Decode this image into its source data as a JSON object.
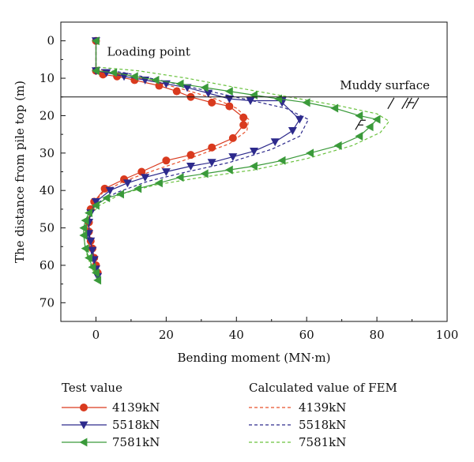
{
  "chart_data": {
    "type": "line",
    "xlabel": "Bending moment (MN·m)",
    "ylabel": "The distance from pile top (m)",
    "xlim": [
      -10,
      100
    ],
    "ylim": [
      75,
      -5
    ],
    "x_ticks": [
      0,
      20,
      40,
      60,
      80,
      100
    ],
    "y_ticks": [
      0,
      10,
      20,
      30,
      40,
      50,
      60,
      70
    ],
    "inverted_y": true,
    "grid": false,
    "annotations": {
      "loading_point": {
        "text": "Loading point"
      },
      "muddy_surface": {
        "text": "Muddy surface",
        "depth": 15
      }
    },
    "legend": {
      "test_title": "Test value",
      "fem_title": "Calculated value of FEM",
      "placement": "bottom"
    },
    "test_series": [
      {
        "name": "4139kN",
        "color": "#d93a1e",
        "marker": "circle",
        "points": [
          [
            0,
            0
          ],
          [
            0,
            8
          ],
          [
            2,
            9
          ],
          [
            6,
            9.5
          ],
          [
            11,
            10.5
          ],
          [
            18,
            12
          ],
          [
            23,
            13.5
          ],
          [
            27,
            15
          ],
          [
            33,
            16.5
          ],
          [
            38,
            17.5
          ],
          [
            42,
            20.5
          ],
          [
            42,
            22.5
          ],
          [
            39,
            26
          ],
          [
            33,
            28.5
          ],
          [
            27,
            30.5
          ],
          [
            20,
            32
          ],
          [
            13,
            35
          ],
          [
            8,
            37
          ],
          [
            2.5,
            39.5
          ],
          [
            -0.5,
            43
          ],
          [
            -1.5,
            45
          ],
          [
            -2,
            48.5
          ],
          [
            -2,
            51
          ],
          [
            -1.5,
            53.5
          ],
          [
            -1,
            55.5
          ],
          [
            -0.5,
            58
          ],
          [
            0,
            60
          ],
          [
            0.5,
            62
          ]
        ]
      },
      {
        "name": "5518kN",
        "color": "#2d2a8c",
        "marker": "triangle-down",
        "points": [
          [
            0,
            0
          ],
          [
            0,
            8
          ],
          [
            3,
            8.5
          ],
          [
            8,
            9.5
          ],
          [
            14,
            10.5
          ],
          [
            20,
            11.5
          ],
          [
            26,
            12.5
          ],
          [
            32,
            14
          ],
          [
            38,
            15.5
          ],
          [
            44,
            16
          ],
          [
            53,
            16
          ],
          [
            53,
            16.5
          ],
          [
            58,
            21
          ],
          [
            56,
            24
          ],
          [
            51,
            27
          ],
          [
            45,
            29.5
          ],
          [
            39,
            31
          ],
          [
            33,
            32.5
          ],
          [
            27,
            33.5
          ],
          [
            20,
            35
          ],
          [
            14,
            36.5
          ],
          [
            9,
            38
          ],
          [
            4,
            40
          ],
          [
            0,
            43
          ],
          [
            -1.5,
            46
          ],
          [
            -2,
            48.5
          ],
          [
            -2,
            51.5
          ],
          [
            -1.5,
            53.5
          ],
          [
            -1,
            56
          ],
          [
            -0.5,
            58.5
          ],
          [
            0,
            61
          ],
          [
            0.5,
            63
          ]
        ]
      },
      {
        "name": "7581kN",
        "color": "#3a9a3a",
        "marker": "triangle-left",
        "points": [
          [
            0,
            0
          ],
          [
            0,
            8
          ],
          [
            5,
            8.5
          ],
          [
            11,
            9.5
          ],
          [
            17,
            10.5
          ],
          [
            24,
            11.5
          ],
          [
            31,
            12.5
          ],
          [
            38,
            13.5
          ],
          [
            45,
            14.5
          ],
          [
            52,
            15.5
          ],
          [
            60,
            16.5
          ],
          [
            68,
            18
          ],
          [
            75,
            20
          ],
          [
            80,
            21
          ],
          [
            78,
            23
          ],
          [
            75,
            25.5
          ],
          [
            69,
            28
          ],
          [
            61,
            30
          ],
          [
            53,
            32
          ],
          [
            45,
            33.5
          ],
          [
            38,
            34.5
          ],
          [
            31,
            35.5
          ],
          [
            24,
            36.5
          ],
          [
            18,
            38
          ],
          [
            12,
            39.5
          ],
          [
            7,
            41
          ],
          [
            3,
            42
          ],
          [
            0,
            44
          ],
          [
            -2,
            46
          ],
          [
            -3,
            48
          ],
          [
            -3.5,
            50
          ],
          [
            -3.5,
            52
          ],
          [
            -3,
            55.5
          ],
          [
            -2,
            58
          ],
          [
            -1,
            60.5
          ],
          [
            0,
            62
          ],
          [
            0.5,
            64
          ]
        ]
      }
    ],
    "fem_series": [
      {
        "name": "4139kN",
        "color": "#e8502a",
        "points": [
          [
            0,
            0
          ],
          [
            0,
            7.5
          ],
          [
            6,
            8.5
          ],
          [
            15,
            10.5
          ],
          [
            25,
            13
          ],
          [
            34,
            15.5
          ],
          [
            40,
            18
          ],
          [
            43.5,
            21
          ],
          [
            43,
            24
          ],
          [
            38,
            27.5
          ],
          [
            28,
            31
          ],
          [
            17,
            34.5
          ],
          [
            8,
            37.5
          ],
          [
            2,
            40.5
          ],
          [
            -1,
            44
          ],
          [
            -2.5,
            49
          ],
          [
            -2,
            54
          ],
          [
            -1,
            58
          ],
          [
            0,
            61
          ],
          [
            0.5,
            63
          ]
        ]
      },
      {
        "name": "5518kN",
        "color": "#2d2a8c",
        "points": [
          [
            0,
            0
          ],
          [
            0,
            7.5
          ],
          [
            8,
            8.5
          ],
          [
            18,
            10.5
          ],
          [
            30,
            13
          ],
          [
            42,
            15.5
          ],
          [
            54,
            18
          ],
          [
            60.5,
            21
          ],
          [
            58,
            25.5
          ],
          [
            50,
            29
          ],
          [
            38,
            32.5
          ],
          [
            26,
            35
          ],
          [
            15,
            37.5
          ],
          [
            6,
            40.5
          ],
          [
            0,
            43.5
          ],
          [
            -2,
            48
          ],
          [
            -2.5,
            52
          ],
          [
            -1.5,
            56
          ],
          [
            -0.5,
            60
          ],
          [
            0.5,
            63
          ]
        ]
      },
      {
        "name": "7581kN",
        "color": "#6ac23e",
        "points": [
          [
            0,
            0
          ],
          [
            0,
            7
          ],
          [
            12,
            8
          ],
          [
            26,
            10
          ],
          [
            40,
            12.5
          ],
          [
            55,
            15
          ],
          [
            70,
            17.5
          ],
          [
            80,
            19.5
          ],
          [
            83.5,
            21.5
          ],
          [
            81,
            24.5
          ],
          [
            73,
            28
          ],
          [
            60,
            31.5
          ],
          [
            45,
            34.5
          ],
          [
            30,
            36.5
          ],
          [
            17,
            38.5
          ],
          [
            7,
            41
          ],
          [
            1,
            44
          ],
          [
            -2.5,
            47.5
          ],
          [
            -3.5,
            51.5
          ],
          [
            -3,
            56
          ],
          [
            -1.5,
            60
          ],
          [
            0,
            63
          ],
          [
            0.5,
            64
          ]
        ]
      }
    ]
  }
}
